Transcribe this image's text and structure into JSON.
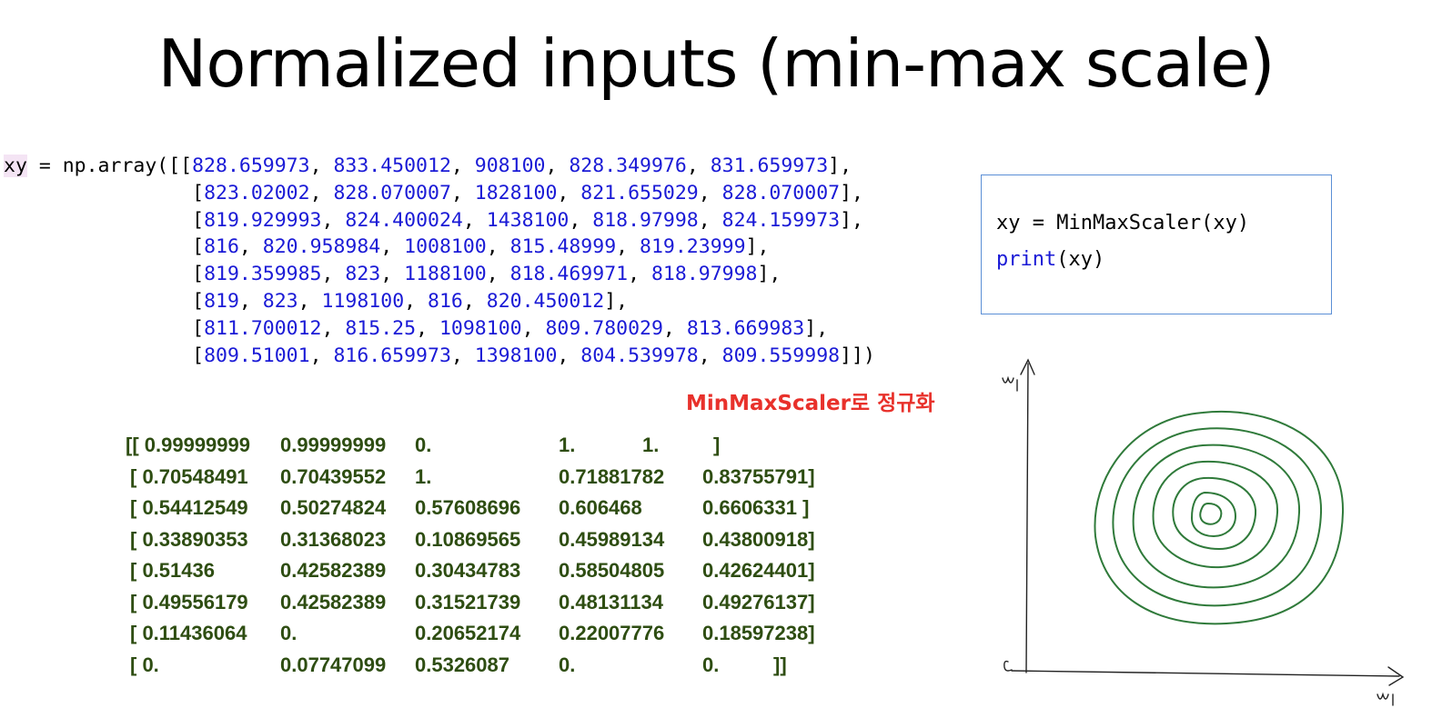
{
  "title": "Normalized inputs (min-max scale)",
  "code": {
    "var": "xy",
    "assign": " = np.array([[",
    "rows": [
      [
        "828.659973",
        "833.450012",
        "908100",
        "828.349976",
        "831.659973"
      ],
      [
        "823.02002",
        "828.070007",
        "1828100",
        "821.655029",
        "828.070007"
      ],
      [
        "819.929993",
        "824.400024",
        "1438100",
        "818.97998",
        "824.159973"
      ],
      [
        "816",
        "820.958984",
        "1008100",
        "815.48999",
        "819.23999"
      ],
      [
        "819.359985",
        "823",
        "1188100",
        "818.469971",
        "818.97998"
      ],
      [
        "819",
        "823",
        "1198100",
        "816",
        "820.450012"
      ],
      [
        "811.700012",
        "815.25",
        "1098100",
        "809.780029",
        "813.669983"
      ],
      [
        "809.51001",
        "816.659973",
        "1398100",
        "804.539978",
        "809.559998"
      ]
    ]
  },
  "box": {
    "line1": "xy = MinMaxScaler(xy)",
    "line2_kw": "print",
    "line2_rest": "(xy)"
  },
  "caption": "MinMaxScaler로 정규화",
  "matrix": [
    [
      "[[ 0.99999999",
      "0.99999999",
      "0.",
      "1.",
      "1.",
      "]"
    ],
    [
      "[ 0.70548491",
      "0.70439552",
      "1.",
      "0.71881782",
      "0.83755791]",
      ""
    ],
    [
      "[ 0.54412549",
      "0.50274824",
      "0.57608696",
      "0.606468",
      "0.6606331 ]",
      ""
    ],
    [
      "[ 0.33890353",
      "0.31368023",
      "0.10869565",
      "0.45989134",
      "0.43800918]",
      ""
    ],
    [
      "[ 0.51436",
      "0.42582389",
      "0.30434783",
      "0.58504805",
      "0.42624401]",
      ""
    ],
    [
      "[ 0.49556179",
      "0.42582389",
      "0.31521739",
      "0.48131134",
      "0.49276137]",
      ""
    ],
    [
      "[ 0.11436064",
      "0.",
      "0.20652174",
      "0.22007776",
      "0.18597238]",
      ""
    ],
    [
      "[ 0.",
      "0.07747099",
      "0.5326087",
      "0.",
      "0.",
      "]]"
    ]
  ],
  "colors": {
    "number": "#1a1ad6",
    "caption": "#e8312b",
    "matrix": "#2e4d12",
    "box_border": "#5b8fd6",
    "contour": "#2f7a3a"
  }
}
